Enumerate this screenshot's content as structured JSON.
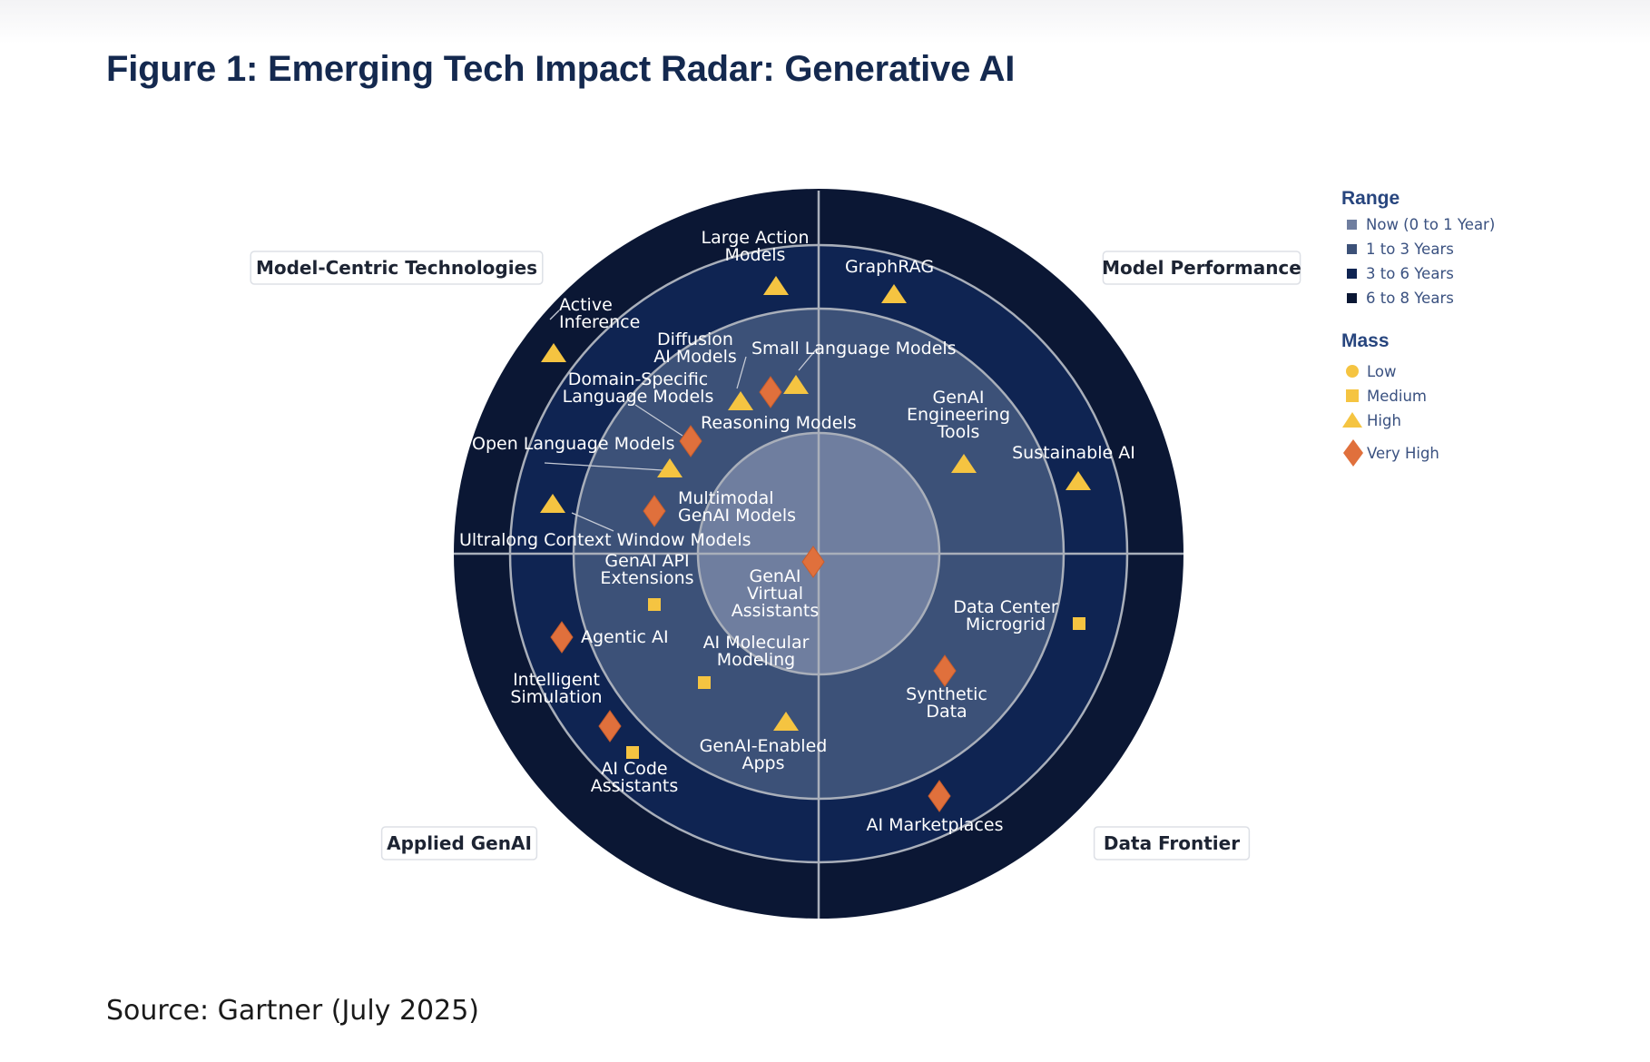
{
  "title": "Figure 1: Emerging Tech Impact Radar: Generative AI",
  "source": "Source: Gartner (July 2025)",
  "colors": {
    "ring_now": "#6f7e9f",
    "ring_1_3": "#3c5178",
    "ring_3_6": "#0f2452",
    "ring_6_8": "#0b1734",
    "divider": "#a9afba",
    "marker_yellow": "#f5c441",
    "marker_orange": "#e0703c"
  },
  "quadrants": [
    {
      "id": "model-centric",
      "label": "Model-Centric Technologies"
    },
    {
      "id": "model-performance",
      "label": "Model Performance"
    },
    {
      "id": "applied-genai",
      "label": "Applied GenAI"
    },
    {
      "id": "data-frontier",
      "label": "Data Frontier"
    }
  ],
  "legend": {
    "range_title": "Range",
    "range": [
      {
        "label": "Now (0 to 1 Year)",
        "color": "#6f7e9f"
      },
      {
        "label": "1 to 3 Years",
        "color": "#3c5178"
      },
      {
        "label": "3 to 6 Years",
        "color": "#0f2452"
      },
      {
        "label": "6 to 8 Years",
        "color": "#0b1734"
      }
    ],
    "mass_title": "Mass",
    "mass": [
      {
        "label": "Low",
        "shape": "circle"
      },
      {
        "label": "Medium",
        "shape": "square"
      },
      {
        "label": "High",
        "shape": "triangle"
      },
      {
        "label": "Very High",
        "shape": "diamond"
      }
    ]
  },
  "technologies": [
    {
      "name": "Large Action Models",
      "lines": [
        "Large Action",
        "Models"
      ],
      "quadrant": "model-centric",
      "range": "3 to 6 Years",
      "mass": "High"
    },
    {
      "name": "GraphRAG",
      "lines": [
        "GraphRAG"
      ],
      "quadrant": "model-performance",
      "range": "3 to 6 Years",
      "mass": "High"
    },
    {
      "name": "Active Inference",
      "lines": [
        "Active",
        "Inference"
      ],
      "quadrant": "model-centric",
      "range": "6 to 8 Years",
      "mass": "High"
    },
    {
      "name": "Diffusion AI Models",
      "lines": [
        "Diffusion",
        "AI Models"
      ],
      "quadrant": "model-centric",
      "range": "1 to 3 Years",
      "mass": "High"
    },
    {
      "name": "Small Language Models",
      "lines": [
        "Small Language Models"
      ],
      "quadrant": "model-centric",
      "range": "1 to 3 Years",
      "mass": "High"
    },
    {
      "name": "Domain-Specific Language Models",
      "lines": [
        "Domain-Specific",
        "Language Models"
      ],
      "quadrant": "model-centric",
      "range": "1 to 3 Years",
      "mass": "Very High"
    },
    {
      "name": "Reasoning Models",
      "lines": [
        "Reasoning Models"
      ],
      "quadrant": "model-centric",
      "range": "1 to 3 Years",
      "mass": "Very High"
    },
    {
      "name": "Open Language Models",
      "lines": [
        "Open Language Models"
      ],
      "quadrant": "model-centric",
      "range": "1 to 3 Years",
      "mass": "High"
    },
    {
      "name": "Ultralong Context Window Models",
      "lines": [
        "Ultralong Context Window Models"
      ],
      "quadrant": "model-centric",
      "range": "6 to 8 Years",
      "mass": "High"
    },
    {
      "name": "Multimodal GenAI Models",
      "lines": [
        "Multimodal",
        "GenAI Models"
      ],
      "quadrant": "model-centric",
      "range": "1 to 3 Years",
      "mass": "Very High"
    },
    {
      "name": "GenAI Engineering Tools",
      "lines": [
        "GenAI",
        "Engineering",
        "Tools"
      ],
      "quadrant": "model-performance",
      "range": "1 to 3 Years",
      "mass": "High"
    },
    {
      "name": "Sustainable AI",
      "lines": [
        "Sustainable AI"
      ],
      "quadrant": "model-performance",
      "range": "3 to 6 Years",
      "mass": "High"
    },
    {
      "name": "GenAI API Extensions",
      "lines": [
        "GenAI API",
        "Extensions"
      ],
      "quadrant": "applied-genai",
      "range": "1 to 3 Years",
      "mass": "Medium"
    },
    {
      "name": "GenAI Virtual Assistants",
      "lines": [
        "GenAI",
        "Virtual",
        "Assistants"
      ],
      "quadrant": "applied-genai",
      "range": "Now (0 to 1 Year)",
      "mass": "Very High"
    },
    {
      "name": "Data Center Microgrid",
      "lines": [
        "Data Center",
        "Microgrid"
      ],
      "quadrant": "data-frontier",
      "range": "3 to 6 Years",
      "mass": "Medium"
    },
    {
      "name": "Agentic AI",
      "lines": [
        "Agentic AI"
      ],
      "quadrant": "applied-genai",
      "range": "3 to 6 Years",
      "mass": "Very High"
    },
    {
      "name": "AI Molecular Modeling",
      "lines": [
        "AI Molecular",
        "Modeling"
      ],
      "quadrant": "applied-genai",
      "range": "1 to 3 Years",
      "mass": "Medium"
    },
    {
      "name": "Synthetic Data",
      "lines": [
        "Synthetic",
        "Data"
      ],
      "quadrant": "data-frontier",
      "range": "1 to 3 Years",
      "mass": "Very High"
    },
    {
      "name": "Intelligent Simulation",
      "lines": [
        "Intelligent",
        "Simulation"
      ],
      "quadrant": "applied-genai",
      "range": "3 to 6 Years",
      "mass": "Very High"
    },
    {
      "name": "GenAI-Enabled Apps",
      "lines": [
        "GenAI-Enabled",
        "Apps"
      ],
      "quadrant": "applied-genai",
      "range": "1 to 3 Years",
      "mass": "High"
    },
    {
      "name": "AI Code Assistants",
      "lines": [
        "AI Code",
        "Assistants"
      ],
      "quadrant": "applied-genai",
      "range": "3 to 6 Years",
      "mass": "Medium"
    },
    {
      "name": "AI Marketplaces",
      "lines": [
        "AI Marketplaces"
      ],
      "quadrant": "data-frontier",
      "range": "3 to 6 Years",
      "mass": "Very High"
    }
  ]
}
